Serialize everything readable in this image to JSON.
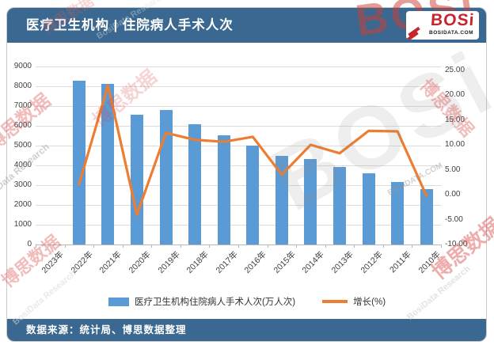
{
  "header": {
    "title": "医疗卫生机构 | 住院病人手术人次",
    "logo": {
      "name": "BOSi",
      "domain": "BOSIDATA.COM"
    }
  },
  "footer": {
    "source": "数据来源：统计局、博思数据整理"
  },
  "watermark": {
    "cn": "博思数据",
    "en": "BosiData Research",
    "logo": "BOSi",
    "en_short": "Data Research"
  },
  "colors": {
    "header_bg": "#3A6890",
    "bar": "#5B9BD5",
    "line": "#ED7D31",
    "logo_red": "#C4262C"
  },
  "chart_data": {
    "type": "bar",
    "title": "医疗卫生机构 | 住院病人手术人次",
    "categories": [
      "2023年",
      "2022年",
      "2021年",
      "2020年",
      "2019年",
      "2018年",
      "2017年",
      "2016年",
      "2015年",
      "2014年",
      "2013年",
      "2012年",
      "2011年",
      "2010年"
    ],
    "series": [
      {
        "name": "医疗卫生机构住院病人手术人次(万人次)",
        "type": "bar",
        "axis": "left",
        "color": "#5B9BD5",
        "values": [
          null,
          8280,
          8130,
          6550,
          6810,
          6070,
          5530,
          5000,
          4465,
          4305,
          3905,
          3600,
          3170,
          2800
        ]
      },
      {
        "name": "增长(%)",
        "type": "line",
        "axis": "right",
        "color": "#ED7D31",
        "values": [
          null,
          2.1,
          21.9,
          -4.0,
          12.4,
          11.0,
          10.6,
          11.6,
          4.0,
          10.0,
          8.3,
          12.8,
          12.7,
          -0.2
        ]
      }
    ],
    "left_axis": {
      "min": 0,
      "max": 9000,
      "step": 1000
    },
    "right_axis": {
      "min": -10,
      "max": 25,
      "step": 5,
      "decimals": 2
    },
    "legend_position": "bottom",
    "grid": true
  }
}
